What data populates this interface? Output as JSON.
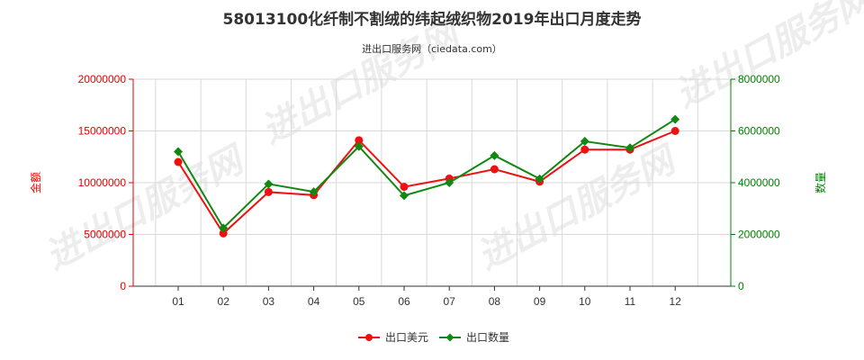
{
  "chart_data": {
    "type": "line",
    "title": "58013100化纤制不割绒的纬起绒织物2019年出口月度走势",
    "subtitle": "进出口服务网（ciedata.com）",
    "categories": [
      "01",
      "02",
      "03",
      "04",
      "05",
      "06",
      "07",
      "08",
      "09",
      "10",
      "11",
      "12"
    ],
    "left_axis": {
      "label": "金额",
      "ylim": [
        0,
        20000000
      ],
      "ticks": [
        "0",
        "5000000",
        "10000000",
        "15000000",
        "20000000"
      ],
      "color": "#e60000"
    },
    "right_axis": {
      "label": "数量",
      "ylim": [
        0,
        8000000
      ],
      "ticks": [
        "0",
        "2000000",
        "4000000",
        "6000000",
        "8000000"
      ],
      "color": "#008000"
    },
    "series": [
      {
        "name": "出口美元",
        "axis": "left",
        "color": "#ee1111",
        "marker": "circle",
        "values": [
          12000000,
          5100000,
          9100000,
          8800000,
          14100000,
          9600000,
          10400000,
          11300000,
          10100000,
          13200000,
          13200000,
          15000000
        ]
      },
      {
        "name": "出口数量",
        "axis": "right",
        "color": "#118811",
        "marker": "diamond",
        "values": [
          5200000,
          2250000,
          3950000,
          3650000,
          5400000,
          3500000,
          4000000,
          5050000,
          4150000,
          5600000,
          5350000,
          6450000
        ]
      }
    ],
    "grid": true,
    "legend_position": "bottom",
    "watermark": "进出口服务网"
  }
}
